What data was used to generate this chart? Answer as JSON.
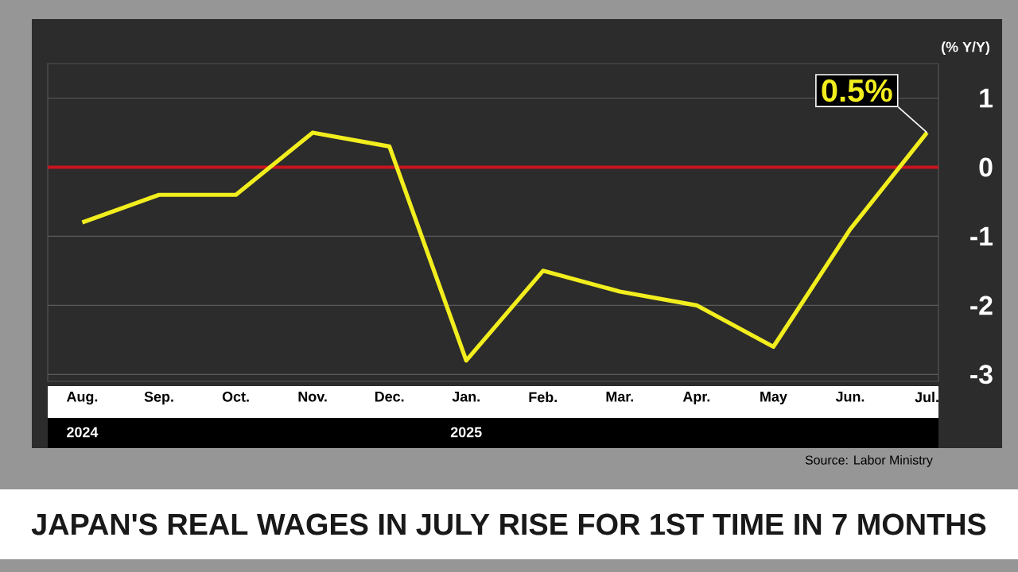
{
  "chart_data": {
    "type": "line",
    "title": "JAPAN'S REAL WAGES IN JULY RISE FOR 1ST TIME IN 7 MONTHS",
    "ylabel": "(% Y/Y)",
    "categories": [
      "Aug.",
      "Sep.",
      "Oct.",
      "Nov.",
      "Dec.",
      "Jan.",
      "Feb.",
      "Mar.",
      "Apr.",
      "May",
      "Jun.",
      "Jul."
    ],
    "series": [
      {
        "color": "#f2ee1e",
        "values": [
          -0.8,
          -0.4,
          -0.4,
          0.5,
          0.3,
          -2.8,
          -1.5,
          -1.8,
          -2.0,
          -2.6,
          -0.9,
          0.5
        ],
        "value_labels": [
          null,
          null,
          null,
          null,
          null,
          null,
          null,
          null,
          null,
          null,
          null,
          "0.5%"
        ]
      }
    ],
    "ylim": [
      -3.1,
      1.5
    ],
    "yticks": [
      -3,
      -2,
      -1,
      0,
      1
    ],
    "grid": "y",
    "line_style": "solid",
    "ref_lines": [
      {
        "axis": "y",
        "value": 0,
        "color": "#c8141e"
      }
    ],
    "annotations": [
      "2024",
      "2025",
      "Source: Labor Ministry"
    ]
  }
}
